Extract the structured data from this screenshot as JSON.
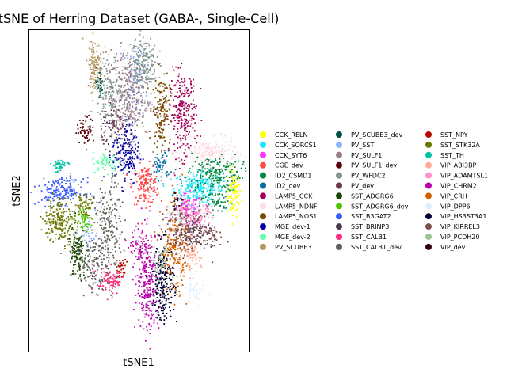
{
  "chart_data": {
    "type": "scatter",
    "title": "tSNE of Herring Dataset (GABA-, Single-Cell)",
    "xlabel": "tSNE1",
    "ylabel": "tSNE2",
    "xlim": [
      0,
      100
    ],
    "ylim": [
      0,
      100
    ],
    "xticks": [],
    "yticks": [],
    "grid": false,
    "legend_position": "right",
    "legend_columns": 3,
    "series": [
      {
        "name": "CCK_RELN",
        "color": "#ffff00",
        "clusters": [
          {
            "x": 93,
            "y": 49,
            "sx": 1.6,
            "sy": 3.5,
            "n": 110
          }
        ]
      },
      {
        "name": "CCK_SORCS1",
        "color": "#1ce6ff",
        "clusters": [
          {
            "x": 77,
            "y": 51,
            "sx": 5.5,
            "sy": 2.5,
            "n": 260
          }
        ]
      },
      {
        "name": "CCK_SYT6",
        "color": "#ff34ff",
        "clusters": [
          {
            "x": 72,
            "y": 44,
            "sx": 3.5,
            "sy": 2.5,
            "n": 90
          }
        ]
      },
      {
        "name": "CGE_dev",
        "color": "#ff4a46",
        "clusters": [
          {
            "x": 53,
            "y": 52,
            "sx": 3,
            "sy": 3,
            "n": 160
          }
        ]
      },
      {
        "name": "ID2_CSMD1",
        "color": "#008941",
        "clusters": [
          {
            "x": 84,
            "y": 56,
            "sx": 6,
            "sy": 3,
            "n": 200
          },
          {
            "x": 85,
            "y": 47,
            "sx": 3,
            "sy": 2,
            "n": 60
          }
        ]
      },
      {
        "name": "ID2_dev",
        "color": "#006fa6",
        "clusters": [
          {
            "x": 60,
            "y": 58,
            "sx": 2,
            "sy": 2.2,
            "n": 60
          }
        ]
      },
      {
        "name": "LAMP5_CCK",
        "color": "#a30059",
        "clusters": [
          {
            "x": 70,
            "y": 74,
            "sx": 3,
            "sy": 6.5,
            "n": 260
          }
        ]
      },
      {
        "name": "LAMP5_NDNF",
        "color": "#ffdbe5",
        "clusters": [
          {
            "x": 82,
            "y": 62,
            "sx": 6,
            "sy": 2,
            "n": 180
          }
        ]
      },
      {
        "name": "LAMP5_NOS1",
        "color": "#7a4900",
        "clusters": [
          {
            "x": 60,
            "y": 75,
            "sx": 2,
            "sy": 5.5,
            "n": 150
          }
        ]
      },
      {
        "name": "MGE_dev-1",
        "color": "#0000a6",
        "clusters": [
          {
            "x": 44,
            "y": 62,
            "sx": 3,
            "sy": 5,
            "n": 190
          }
        ]
      },
      {
        "name": "MGE_dev-2",
        "color": "#63ffac",
        "clusters": [
          {
            "x": 35,
            "y": 59,
            "sx": 3,
            "sy": 1.5,
            "n": 60
          }
        ]
      },
      {
        "name": "PV_SCUBE3",
        "color": "#b79762",
        "clusters": [
          {
            "x": 30,
            "y": 89,
            "sx": 1.6,
            "sy": 4,
            "n": 120
          }
        ]
      },
      {
        "name": "PV_SCUBE3_dev",
        "color": "#004d43",
        "clusters": [
          {
            "x": 32,
            "y": 83,
            "sx": 1,
            "sy": 2.5,
            "n": 30
          }
        ]
      },
      {
        "name": "PV_SST",
        "color": "#8fb0ff",
        "clusters": [
          {
            "x": 48,
            "y": 85,
            "sx": 2.5,
            "sy": 5,
            "n": 80
          },
          {
            "x": 27,
            "y": 36,
            "sx": 2,
            "sy": 3,
            "n": 40
          }
        ]
      },
      {
        "name": "PV_SULF1",
        "color": "#997d87",
        "clusters": [
          {
            "x": 45,
            "y": 80,
            "sx": 5,
            "sy": 7,
            "n": 340
          }
        ]
      },
      {
        "name": "PV_SULF1_dev",
        "color": "#5a0007",
        "clusters": [
          {
            "x": 26,
            "y": 69,
            "sx": 2,
            "sy": 2,
            "n": 60
          }
        ]
      },
      {
        "name": "PV_WFDC2",
        "color": "#809693",
        "clusters": [
          {
            "x": 52,
            "y": 90,
            "sx": 3,
            "sy": 4,
            "n": 180
          },
          {
            "x": 37,
            "y": 80,
            "sx": 3,
            "sy": 6,
            "n": 140
          }
        ]
      },
      {
        "name": "PV_dev",
        "color": "#6a3a4c",
        "clusters": [
          {
            "x": 39,
            "y": 70,
            "sx": 3,
            "sy": 3,
            "n": 80
          }
        ]
      },
      {
        "name": "SST_ADGRG6",
        "color": "#1b4400",
        "clusters": [
          {
            "x": 22,
            "y": 30,
            "sx": 2,
            "sy": 4,
            "n": 120
          }
        ]
      },
      {
        "name": "SST_ADGRG6_dev",
        "color": "#4fc601",
        "clusters": [
          {
            "x": 25,
            "y": 42,
            "sx": 2,
            "sy": 2,
            "n": 60
          }
        ]
      },
      {
        "name": "SST_B3GAT2",
        "color": "#3b5dff",
        "clusters": [
          {
            "x": 15,
            "y": 50,
            "sx": 5,
            "sy": 2,
            "n": 180
          }
        ]
      },
      {
        "name": "SST_BRINP3",
        "color": "#4a3b53",
        "clusters": [
          {
            "x": 73,
            "y": 37,
            "sx": 4,
            "sy": 3,
            "n": 110
          }
        ]
      },
      {
        "name": "SST_CALB1",
        "color": "#ff2f80",
        "clusters": [
          {
            "x": 37,
            "y": 22,
            "sx": 3,
            "sy": 2,
            "n": 90
          }
        ]
      },
      {
        "name": "SST_CALB1_dev",
        "color": "#61615a",
        "clusters": [
          {
            "x": 36,
            "y": 37,
            "sx": 3,
            "sy": 8,
            "n": 230
          },
          {
            "x": 29,
            "y": 27,
            "sx": 3,
            "sy": 4,
            "n": 100
          }
        ]
      },
      {
        "name": "SST_NPY",
        "color": "#ba0900",
        "clusters": [
          {
            "x": 42,
            "y": 26,
            "sx": 1,
            "sy": 1.5,
            "n": 30
          }
        ]
      },
      {
        "name": "SST_STK32A",
        "color": "#6b7900",
        "clusters": [
          {
            "x": 14,
            "y": 41,
            "sx": 3.5,
            "sy": 3.5,
            "n": 190
          },
          {
            "x": 25,
            "y": 46,
            "sx": 2,
            "sy": 2,
            "n": 60
          }
        ]
      },
      {
        "name": "SST_TH",
        "color": "#00c2a0",
        "clusters": [
          {
            "x": 14,
            "y": 58,
            "sx": 2,
            "sy": 1,
            "n": 40
          }
        ]
      },
      {
        "name": "VIP_ABI3BP",
        "color": "#ffaa92",
        "clusters": [
          {
            "x": 72,
            "y": 30,
            "sx": 3,
            "sy": 3,
            "n": 100
          }
        ]
      },
      {
        "name": "VIP_ADAMTSL1",
        "color": "#ff90c9",
        "clusters": [
          {
            "x": 75,
            "y": 42,
            "sx": 4,
            "sy": 2,
            "n": 120
          }
        ]
      },
      {
        "name": "VIP_CHRM2",
        "color": "#b903aa",
        "clusters": [
          {
            "x": 54,
            "y": 22,
            "sx": 2.5,
            "sy": 8,
            "n": 260
          },
          {
            "x": 50,
            "y": 32,
            "sx": 2,
            "sy": 3,
            "n": 60
          }
        ]
      },
      {
        "name": "VIP_CRH",
        "color": "#d16100",
        "clusters": [
          {
            "x": 66,
            "y": 32,
            "sx": 3,
            "sy": 7,
            "n": 220
          }
        ]
      },
      {
        "name": "VIP_DPP6",
        "color": "#ddefff",
        "clusters": [
          {
            "x": 66,
            "y": 42,
            "sx": 3,
            "sy": 2,
            "n": 60
          },
          {
            "x": 75,
            "y": 18,
            "sx": 2,
            "sy": 2,
            "n": 40
          }
        ]
      },
      {
        "name": "VIP_HS3ST3A1",
        "color": "#000035",
        "clusters": [
          {
            "x": 61,
            "y": 22,
            "sx": 2.5,
            "sy": 6,
            "n": 220
          }
        ]
      },
      {
        "name": "VIP_KIRREL3",
        "color": "#7b4f4b",
        "clusters": [
          {
            "x": 72,
            "y": 38,
            "sx": 6,
            "sy": 3,
            "n": 140
          },
          {
            "x": 83,
            "y": 36,
            "sx": 2,
            "sy": 2,
            "n": 40
          }
        ]
      },
      {
        "name": "VIP_PCDH20",
        "color": "#a1c299",
        "clusters": [
          {
            "x": 59,
            "y": 28,
            "sx": 2,
            "sy": 2,
            "n": 40
          }
        ]
      },
      {
        "name": "VIP_dev",
        "color": "#300018",
        "clusters": [
          {
            "x": 67,
            "y": 47,
            "sx": 1.5,
            "sy": 1.5,
            "n": 20
          }
        ]
      }
    ]
  }
}
